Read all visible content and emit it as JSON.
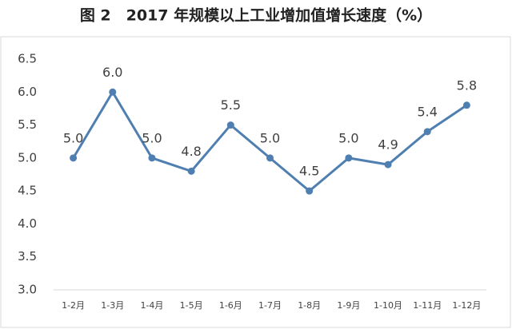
{
  "chart_data": {
    "type": "line",
    "title": "图 2　2017 年规模以上工业增加值增长速度（%）",
    "categories": [
      "1-2月",
      "1-3月",
      "1-4月",
      "1-5月",
      "1-6月",
      "1-7月",
      "1-8月",
      "1-9月",
      "1-10月",
      "1-11月",
      "1-12月"
    ],
    "series": [
      {
        "color": "#4f7fb0",
        "values": [
          5.0,
          6.0,
          5.0,
          4.8,
          5.5,
          5.0,
          4.5,
          5.0,
          4.9,
          5.4,
          5.8
        ],
        "value_labels": [
          "5.0",
          "6.0",
          "5.0",
          "4.8",
          "5.5",
          "5.0",
          "4.5",
          "5.0",
          "4.9",
          "5.4",
          "5.8"
        ]
      }
    ],
    "ylim": [
      3.0,
      6.5
    ],
    "yticks": [
      {
        "value": 3.0,
        "label": "3.0"
      },
      {
        "value": 3.5,
        "label": "3.5"
      },
      {
        "value": 4.0,
        "label": "4.0"
      },
      {
        "value": 4.5,
        "label": "4.5"
      },
      {
        "value": 5.0,
        "label": "5.0"
      },
      {
        "value": 5.5,
        "label": "5.5"
      },
      {
        "value": 6.0,
        "label": "6.0"
      },
      {
        "value": 6.5,
        "label": "6.5"
      }
    ],
    "grid": false
  }
}
